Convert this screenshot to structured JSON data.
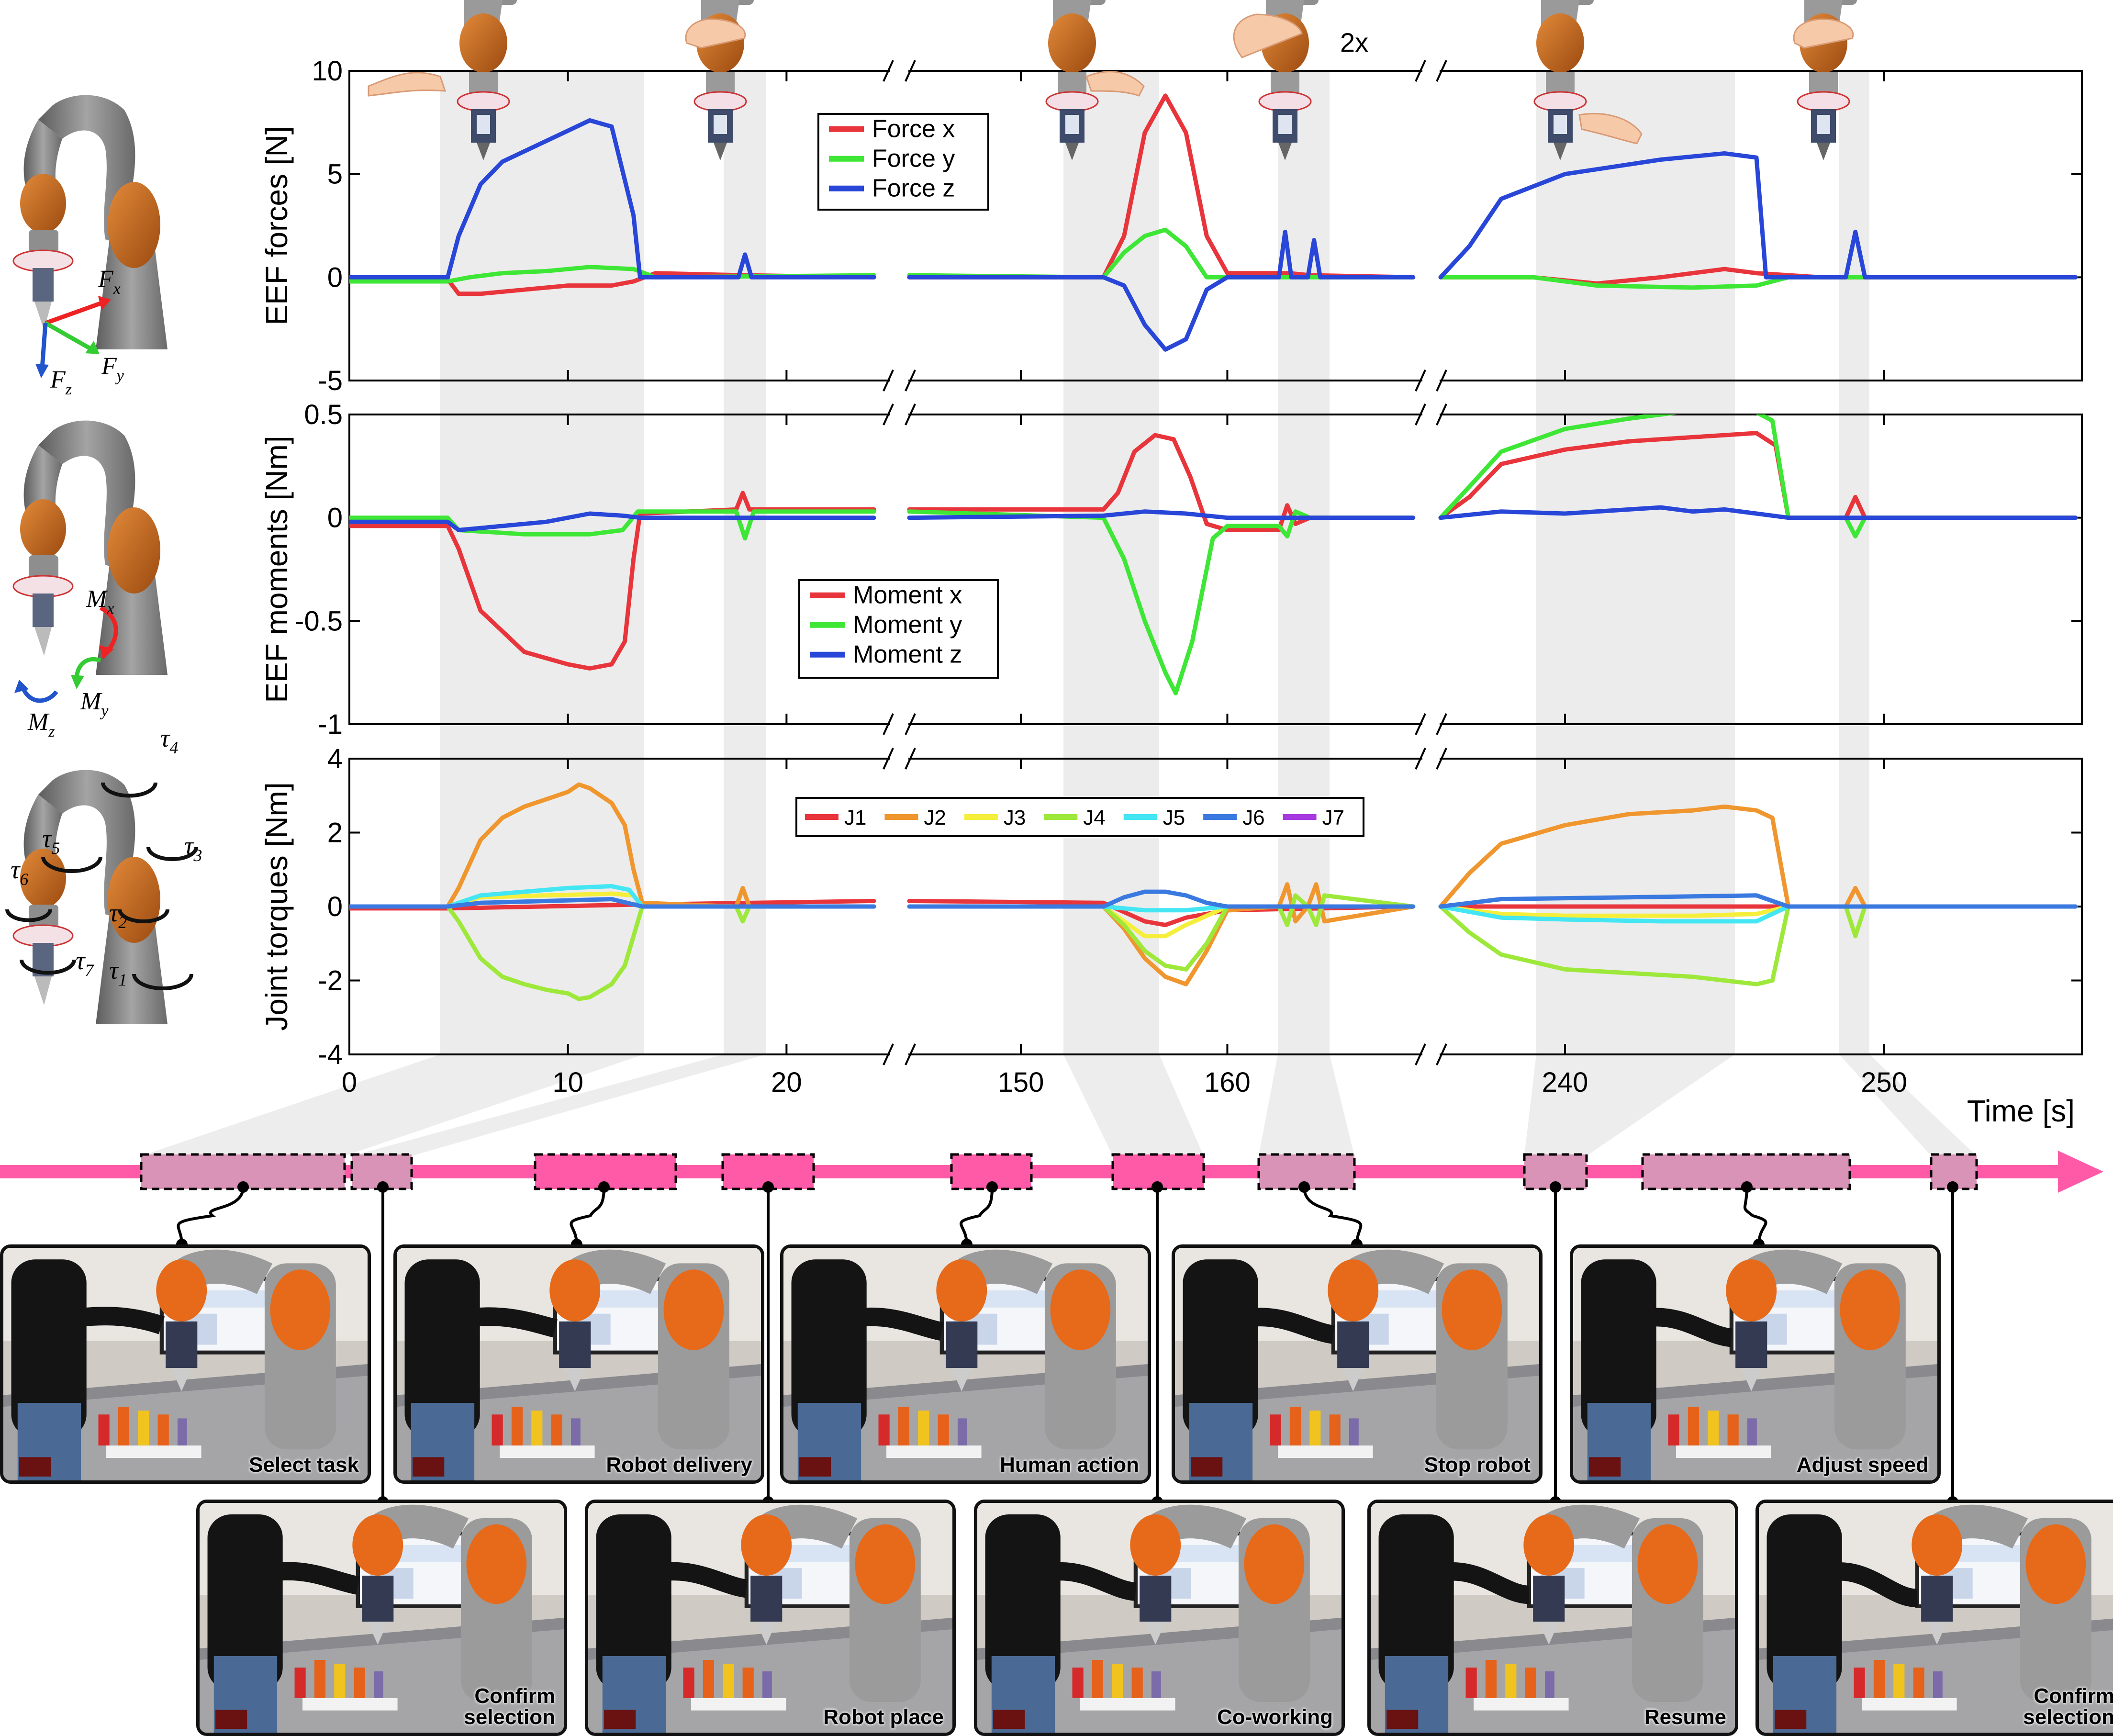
{
  "colors": {
    "red": "#e8353b",
    "green": "#3ee635",
    "blue": "#2846d8",
    "j1": "#e8353b",
    "j2": "#f0962e",
    "j3": "#f5ee3b",
    "j4": "#9ee83b",
    "j5": "#43e6f2",
    "j6": "#3a7ae0",
    "j7": "#a63ae0",
    "timeline": "#ff5aa8",
    "shade": "#ececec"
  },
  "icons": {
    "force_robot": "robot-arm-force-frame-icon",
    "moment_robot": "robot-arm-moment-frame-icon",
    "torque_robot": "robot-arm-joint-torque-icon",
    "gesture": "hand-touch-gripper-icon"
  },
  "annotation_2x": "2x",
  "frame_labels": {
    "fx": "F",
    "fx_sub": "x",
    "fy": "F",
    "fy_sub": "y",
    "fz": "F",
    "fz_sub": "z",
    "mx": "M",
    "mx_sub": "x",
    "my": "M",
    "my_sub": "y",
    "mz": "M",
    "mz_sub": "z",
    "taus": [
      {
        "t": "τ",
        "s": "1"
      },
      {
        "t": "τ",
        "s": "2"
      },
      {
        "t": "τ",
        "s": "3"
      },
      {
        "t": "τ",
        "s": "4"
      },
      {
        "t": "τ",
        "s": "5"
      },
      {
        "t": "τ",
        "s": "6"
      },
      {
        "t": "τ",
        "s": "7"
      }
    ]
  },
  "chart_data": [
    {
      "type": "line",
      "ylabel": "EEF forces [N]",
      "ylim": [
        -5,
        10
      ],
      "yticks": [
        "10",
        "5",
        "0",
        "-5"
      ],
      "x_segments": [
        [
          0,
          24.7
        ],
        [
          144.6,
          169.4
        ],
        [
          236.1,
          256.2
        ]
      ],
      "series": [
        {
          "name": "Force x",
          "color_key": "red",
          "x": [
            0,
            4.5,
            5,
            6,
            8,
            10,
            12,
            13,
            14,
            18,
            24,
            144.6,
            150,
            154,
            155,
            156,
            157,
            158,
            159,
            160,
            163,
            164,
            169,
            236.1,
            239,
            241,
            243,
            245,
            246,
            248,
            250,
            252,
            256
          ],
          "y": [
            -0.1,
            -0.1,
            -0.8,
            -0.8,
            -0.6,
            -0.4,
            -0.4,
            -0.2,
            0.2,
            0.1,
            0,
            0,
            0,
            0,
            2,
            7,
            8.8,
            7,
            2,
            0.2,
            0.2,
            0.1,
            0,
            0,
            0,
            -0.3,
            0,
            0.4,
            0.2,
            0,
            0,
            0,
            0
          ]
        },
        {
          "name": "Force y",
          "color_key": "green",
          "x": [
            0,
            4.5,
            5.5,
            7,
            9,
            11,
            13,
            14,
            24,
            144.6,
            154,
            155,
            156,
            157,
            158,
            159,
            160,
            164,
            169,
            236.1,
            239,
            241,
            244,
            246,
            247,
            250,
            256
          ],
          "y": [
            -0.2,
            -0.2,
            0,
            0.2,
            0.3,
            0.5,
            0.4,
            0,
            0.1,
            0.1,
            0,
            1.2,
            2.0,
            2.3,
            1.5,
            0,
            0,
            0,
            0,
            0,
            0,
            -0.4,
            -0.5,
            -0.4,
            0,
            0,
            0
          ]
        },
        {
          "name": "Force z",
          "color_key": "blue",
          "x": [
            0,
            4.5,
            5,
            6,
            7,
            9,
            11,
            12,
            13,
            13.3,
            17.8,
            18.1,
            18.4,
            24,
            144.6,
            154,
            155,
            156,
            157,
            158,
            159,
            160,
            162.5,
            162.8,
            163.1,
            163.9,
            164.2,
            164.5,
            169,
            236.1,
            237,
            238,
            240,
            243,
            245,
            246,
            246.3,
            248.8,
            249.1,
            249.4,
            256
          ],
          "y": [
            0,
            0,
            2,
            4.5,
            5.6,
            6.6,
            7.6,
            7.3,
            3,
            0,
            0,
            1.1,
            0,
            0,
            0,
            0,
            -0.4,
            -2.3,
            -3.5,
            -3,
            -0.6,
            0,
            0,
            2.2,
            0,
            0,
            1.8,
            0,
            0,
            0,
            1.5,
            3.8,
            5,
            5.7,
            6.0,
            5.8,
            0,
            0,
            2.2,
            0,
            0
          ]
        }
      ]
    },
    {
      "type": "line",
      "ylabel": "EEF moments [Nm]",
      "ylim": [
        -1,
        0.5
      ],
      "yticks": [
        "0.5",
        "0",
        "-0.5",
        "-1"
      ],
      "x_segments": [
        [
          0,
          24.7
        ],
        [
          144.6,
          169.4
        ],
        [
          236.1,
          256.2
        ]
      ],
      "series": [
        {
          "name": "Moment x",
          "color_key": "red",
          "x": [
            0,
            4.5,
            5,
            6,
            7,
            8,
            9,
            10,
            11,
            12,
            12.6,
            13,
            13.3,
            17.7,
            18,
            18.3,
            24,
            144.6,
            154,
            154.7,
            155.5,
            156.5,
            157.4,
            158.2,
            159,
            160,
            162.5,
            162.9,
            163.3,
            164,
            169,
            236.1,
            237,
            238,
            240,
            242,
            244,
            245,
            246,
            246.6,
            247,
            248.8,
            249.1,
            249.4,
            256
          ],
          "y": [
            -0.04,
            -0.04,
            -0.15,
            -0.45,
            -0.55,
            -0.65,
            -0.68,
            -0.71,
            -0.73,
            -0.71,
            -0.6,
            -0.2,
            0.02,
            0.04,
            0.12,
            0.04,
            0.04,
            0.04,
            0.04,
            0.12,
            0.32,
            0.4,
            0.38,
            0.2,
            -0.03,
            -0.06,
            -0.06,
            0.06,
            -0.03,
            0,
            0,
            0,
            0.1,
            0.26,
            0.33,
            0.37,
            0.39,
            0.4,
            0.41,
            0.35,
            0,
            0,
            0.1,
            0,
            0
          ]
        },
        {
          "name": "Moment y",
          "color_key": "green",
          "x": [
            0,
            4.5,
            5,
            8,
            11,
            12.5,
            13.2,
            17.7,
            18.1,
            18.5,
            24,
            144.6,
            154,
            155,
            156,
            157,
            157.5,
            158.3,
            159.3,
            160,
            162.5,
            162.9,
            163.3,
            164,
            169,
            236.1,
            237,
            238,
            240,
            242,
            244,
            245,
            246,
            246.5,
            247,
            248.8,
            249.1,
            249.4,
            256
          ],
          "y": [
            0,
            0,
            -0.06,
            -0.08,
            -0.08,
            -0.06,
            0.03,
            0.03,
            -0.1,
            0.03,
            0.03,
            0.03,
            0,
            -0.2,
            -0.5,
            -0.75,
            -0.85,
            -0.6,
            -0.1,
            -0.04,
            -0.04,
            -0.09,
            0.03,
            0,
            0,
            0,
            0.15,
            0.32,
            0.43,
            0.48,
            0.52,
            0.53,
            0.51,
            0.47,
            0,
            0,
            -0.09,
            0,
            0
          ]
        },
        {
          "name": "Moment z",
          "color_key": "blue",
          "x": [
            0,
            4.5,
            5,
            7,
            9,
            11,
            12.5,
            13.3,
            24,
            144.6,
            154,
            156,
            158,
            160,
            164,
            169,
            236.1,
            238,
            240,
            242,
            243,
            244,
            245,
            246,
            247,
            256
          ],
          "y": [
            -0.02,
            -0.02,
            -0.06,
            -0.04,
            -0.02,
            0.02,
            0.01,
            0,
            0,
            0,
            0.01,
            0.03,
            0.02,
            0,
            0,
            0,
            0,
            0.03,
            0.02,
            0.04,
            0.05,
            0.03,
            0.04,
            0.02,
            0,
            0
          ]
        }
      ]
    },
    {
      "type": "line",
      "ylabel": "Joint torques [Nm]",
      "xlabel": "Time [s]",
      "ylim": [
        -4,
        4
      ],
      "yticks": [
        "4",
        "2",
        "0",
        "-2",
        "-4"
      ],
      "x_segments": [
        [
          0,
          24.7
        ],
        [
          144.6,
          169.4
        ],
        [
          236.1,
          256.2
        ]
      ],
      "xticks": [
        {
          "v": 0,
          "label": "0"
        },
        {
          "v": 10,
          "label": "10"
        },
        {
          "v": 20,
          "label": "20"
        },
        {
          "v": 150,
          "label": "150"
        },
        {
          "v": 160,
          "label": "160"
        },
        {
          "v": 240,
          "label": "240"
        },
        {
          "v": 250,
          "label": "250"
        }
      ],
      "series": [
        {
          "name": "J1",
          "color_key": "j1",
          "x": [
            0,
            4.5,
            13,
            24,
            144.6,
            154,
            156,
            157,
            158,
            160,
            169,
            236.1,
            240,
            245,
            256
          ],
          "y": [
            -0.05,
            -0.05,
            0.05,
            0.15,
            0.15,
            0.1,
            -0.4,
            -0.5,
            -0.3,
            -0.1,
            0,
            0,
            0,
            0,
            0
          ]
        },
        {
          "name": "J2",
          "color_key": "j2",
          "x": [
            0,
            4.5,
            5,
            6,
            7,
            8,
            9,
            10,
            10.5,
            11,
            12,
            12.6,
            13,
            13.4,
            17.7,
            18,
            18.3,
            24,
            144.6,
            154,
            155,
            156,
            157,
            158,
            159,
            160,
            162.5,
            162.9,
            163.3,
            163.9,
            164.3,
            164.7,
            169,
            236.1,
            237,
            238,
            240,
            242,
            244,
            245,
            246,
            246.5,
            247,
            248.8,
            249.1,
            249.4,
            256
          ],
          "y": [
            0,
            0,
            0.5,
            1.8,
            2.4,
            2.7,
            2.9,
            3.1,
            3.3,
            3.2,
            2.8,
            2.2,
            1,
            0.1,
            0,
            0.5,
            0,
            0,
            0,
            0,
            -0.6,
            -1.4,
            -1.9,
            -2.1,
            -1.2,
            -0.1,
            0,
            0.6,
            -0.4,
            0,
            0.6,
            -0.4,
            0,
            0,
            0.9,
            1.7,
            2.2,
            2.5,
            2.6,
            2.7,
            2.6,
            2.4,
            0,
            0,
            0.5,
            0,
            0
          ]
        },
        {
          "name": "J3",
          "color_key": "j3",
          "x": [
            0,
            4.5,
            6,
            9,
            12,
            13,
            13.4,
            24,
            144.6,
            154,
            155,
            156,
            157,
            158,
            160,
            169,
            236.1,
            238,
            240,
            244,
            246,
            247,
            256
          ],
          "y": [
            0,
            0,
            0.25,
            0.3,
            0.35,
            0.3,
            0,
            0,
            0,
            0,
            -0.4,
            -0.8,
            -0.8,
            -0.5,
            0,
            0,
            0,
            -0.2,
            -0.25,
            -0.25,
            -0.2,
            0,
            0
          ]
        },
        {
          "name": "J4",
          "color_key": "j4",
          "x": [
            0,
            4.5,
            5,
            6,
            7,
            8,
            9,
            10,
            10.5,
            11,
            12,
            12.6,
            13,
            13.4,
            17.7,
            18,
            18.3,
            24,
            144.6,
            154,
            155,
            156,
            157,
            158,
            159,
            160,
            162.5,
            162.9,
            163.3,
            163.9,
            164.3,
            164.7,
            169,
            236.1,
            237,
            238,
            240,
            242,
            244,
            245,
            246,
            246.5,
            247,
            248.8,
            249.1,
            249.4,
            256
          ],
          "y": [
            0,
            0,
            -0.4,
            -1.4,
            -1.9,
            -2.1,
            -2.25,
            -2.35,
            -2.5,
            -2.45,
            -2.1,
            -1.6,
            -0.8,
            0,
            0,
            -0.4,
            0,
            0,
            0,
            0,
            -0.5,
            -1.2,
            -1.6,
            -1.7,
            -1,
            0,
            0,
            -0.5,
            0.3,
            0,
            -0.5,
            0.3,
            0,
            0,
            -0.7,
            -1.3,
            -1.7,
            -1.8,
            -1.9,
            -2.0,
            -2.1,
            -2.0,
            0,
            0,
            -0.8,
            0,
            0
          ]
        },
        {
          "name": "J5",
          "color_key": "j5",
          "x": [
            0,
            4.5,
            6,
            8,
            10,
            12,
            12.8,
            13.4,
            24,
            144.6,
            154,
            156,
            158,
            160,
            169,
            236.1,
            238,
            240,
            243,
            246,
            247,
            256
          ],
          "y": [
            0,
            0,
            0.3,
            0.4,
            0.5,
            0.55,
            0.45,
            0,
            0,
            0,
            0,
            -0.1,
            -0.1,
            0,
            0,
            0,
            -0.3,
            -0.35,
            -0.4,
            -0.4,
            0,
            0
          ]
        },
        {
          "name": "J6",
          "color_key": "j6",
          "x": [
            0,
            4.5,
            6,
            9,
            12,
            13.4,
            24,
            144.6,
            154,
            155,
            156,
            157,
            158,
            159,
            160,
            169,
            236.1,
            238,
            242,
            246,
            247,
            256
          ],
          "y": [
            0,
            0,
            0.1,
            0.15,
            0.2,
            0,
            0,
            0,
            0,
            0.25,
            0.4,
            0.4,
            0.3,
            0.1,
            0,
            0,
            0,
            0.2,
            0.25,
            0.3,
            0,
            0
          ]
        },
        {
          "name": "J7",
          "color_key": "j7",
          "x": [
            0,
            256
          ],
          "y": [
            0,
            0
          ]
        }
      ]
    }
  ],
  "photos_top": [
    {
      "label": "Select task"
    },
    {
      "label": "Robot delivery"
    },
    {
      "label": "Human action"
    },
    {
      "label": "Stop robot"
    },
    {
      "label": "Adjust speed"
    }
  ],
  "photos_bottom": [
    {
      "label": "Confirm\nselection"
    },
    {
      "label": "Robot place"
    },
    {
      "label": "Co-working"
    },
    {
      "label": "Resume"
    },
    {
      "label": "Confirm\nselection"
    }
  ]
}
